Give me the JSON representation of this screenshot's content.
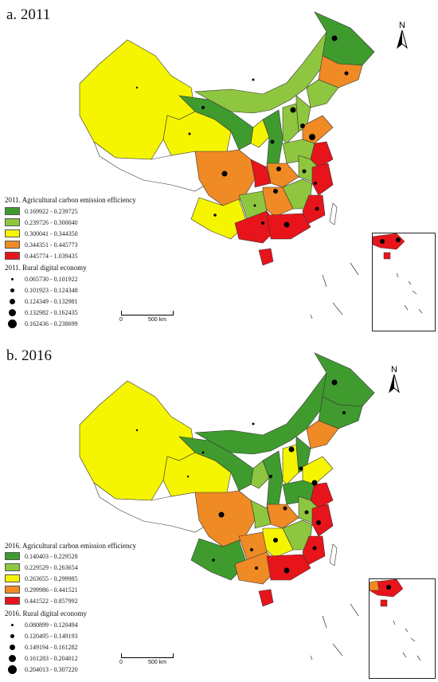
{
  "panels": [
    {
      "title": "a. 2011",
      "efficiency_legend": {
        "title": "2011. Agricultural carbon emission efficiency",
        "items": [
          {
            "range": "0.169922 - 0.239725",
            "color": "#3f9b2e"
          },
          {
            "range": "0.239726 - 0.300040",
            "color": "#8fc63f"
          },
          {
            "range": "0.300041 - 0.344350",
            "color": "#f5f500"
          },
          {
            "range": "0.344351 - 0.445773",
            "color": "#f08a24"
          },
          {
            "range": "0.445774 - 1.039435",
            "color": "#e8141b"
          }
        ]
      },
      "digital_legend": {
        "title": "2011. Rural digital economy",
        "items": [
          {
            "range": "0.065730 - 0.101922",
            "size": 1
          },
          {
            "range": "0.101923 - 0.124348",
            "size": 2
          },
          {
            "range": "0.124349 - 0.132981",
            "size": 3
          },
          {
            "range": "0.132982 - 0.162435",
            "size": 4
          },
          {
            "range": "0.162436 - 0.238699",
            "size": 5
          }
        ]
      }
    },
    {
      "title": "b. 2016",
      "efficiency_legend": {
        "title": "2016. Agricultural carbon emission efficiency",
        "items": [
          {
            "range": "0.140403 - 0.229528",
            "color": "#3f9b2e"
          },
          {
            "range": "0.229529 - 0.263654",
            "color": "#8fc63f"
          },
          {
            "range": "0.263655 - 0.299985",
            "color": "#f5f500"
          },
          {
            "range": "0.299986 - 0.441521",
            "color": "#f08a24"
          },
          {
            "range": "0.441522 - 0.857992",
            "color": "#e8141b"
          }
        ]
      },
      "digital_legend": {
        "title": "2016. Rural digital economy",
        "items": [
          {
            "range": "0.080899 - 0.120494",
            "size": 1
          },
          {
            "range": "0.120495 - 0.149193",
            "size": 2
          },
          {
            "range": "0.149194 - 0.161282",
            "size": 3
          },
          {
            "range": "0.161283 - 0.204012",
            "size": 4
          },
          {
            "range": "0.204013 - 0.307220",
            "size": 5
          }
        ]
      }
    }
  ],
  "scale_bar": {
    "zero": "0",
    "distance": "500 km"
  },
  "north_label": "N"
}
